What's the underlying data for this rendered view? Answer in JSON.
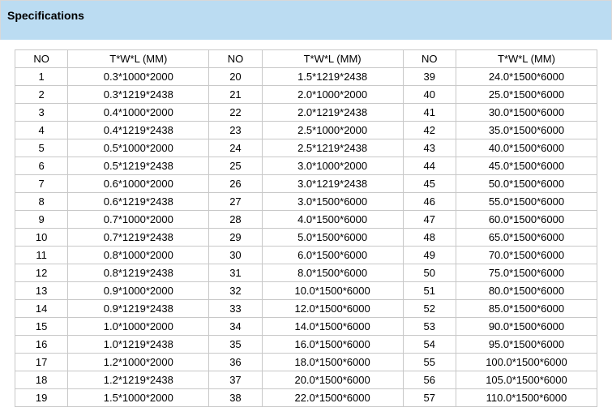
{
  "header": {
    "title": "Specifications"
  },
  "colors": {
    "header_bg": "#bbdcf2",
    "border": "#c8c8c8",
    "text": "#000000",
    "bg": "#ffffff"
  },
  "columns": {
    "no": "NO",
    "twl": "T*W*L (MM)"
  },
  "rows": [
    {
      "c1_no": "1",
      "c1_twl": "0.3*1000*2000",
      "c2_no": "20",
      "c2_twl": "1.5*1219*2438",
      "c3_no": "39",
      "c3_twl": "24.0*1500*6000"
    },
    {
      "c1_no": "2",
      "c1_twl": "0.3*1219*2438",
      "c2_no": "21",
      "c2_twl": "2.0*1000*2000",
      "c3_no": "40",
      "c3_twl": "25.0*1500*6000"
    },
    {
      "c1_no": "3",
      "c1_twl": "0.4*1000*2000",
      "c2_no": "22",
      "c2_twl": "2.0*1219*2438",
      "c3_no": "41",
      "c3_twl": "30.0*1500*6000"
    },
    {
      "c1_no": "4",
      "c1_twl": "0.4*1219*2438",
      "c2_no": "23",
      "c2_twl": "2.5*1000*2000",
      "c3_no": "42",
      "c3_twl": "35.0*1500*6000"
    },
    {
      "c1_no": "5",
      "c1_twl": "0.5*1000*2000",
      "c2_no": "24",
      "c2_twl": "2.5*1219*2438",
      "c3_no": "43",
      "c3_twl": "40.0*1500*6000"
    },
    {
      "c1_no": "6",
      "c1_twl": "0.5*1219*2438",
      "c2_no": "25",
      "c2_twl": "3.0*1000*2000",
      "c3_no": "44",
      "c3_twl": "45.0*1500*6000"
    },
    {
      "c1_no": "7",
      "c1_twl": "0.6*1000*2000",
      "c2_no": "26",
      "c2_twl": "3.0*1219*2438",
      "c3_no": "45",
      "c3_twl": "50.0*1500*6000"
    },
    {
      "c1_no": "8",
      "c1_twl": "0.6*1219*2438",
      "c2_no": "27",
      "c2_twl": "3.0*1500*6000",
      "c3_no": "46",
      "c3_twl": "55.0*1500*6000"
    },
    {
      "c1_no": "9",
      "c1_twl": "0.7*1000*2000",
      "c2_no": "28",
      "c2_twl": "4.0*1500*6000",
      "c3_no": "47",
      "c3_twl": "60.0*1500*6000"
    },
    {
      "c1_no": "10",
      "c1_twl": "0.7*1219*2438",
      "c2_no": "29",
      "c2_twl": "5.0*1500*6000",
      "c3_no": "48",
      "c3_twl": "65.0*1500*6000"
    },
    {
      "c1_no": "11",
      "c1_twl": "0.8*1000*2000",
      "c2_no": "30",
      "c2_twl": "6.0*1500*6000",
      "c3_no": "49",
      "c3_twl": "70.0*1500*6000"
    },
    {
      "c1_no": "12",
      "c1_twl": "0.8*1219*2438",
      "c2_no": "31",
      "c2_twl": "8.0*1500*6000",
      "c3_no": "50",
      "c3_twl": "75.0*1500*6000"
    },
    {
      "c1_no": "13",
      "c1_twl": "0.9*1000*2000",
      "c2_no": "32",
      "c2_twl": "10.0*1500*6000",
      "c3_no": "51",
      "c3_twl": "80.0*1500*6000"
    },
    {
      "c1_no": "14",
      "c1_twl": "0.9*1219*2438",
      "c2_no": "33",
      "c2_twl": "12.0*1500*6000",
      "c3_no": "52",
      "c3_twl": "85.0*1500*6000"
    },
    {
      "c1_no": "15",
      "c1_twl": "1.0*1000*2000",
      "c2_no": "34",
      "c2_twl": "14.0*1500*6000",
      "c3_no": "53",
      "c3_twl": "90.0*1500*6000"
    },
    {
      "c1_no": "16",
      "c1_twl": "1.0*1219*2438",
      "c2_no": "35",
      "c2_twl": "16.0*1500*6000",
      "c3_no": "54",
      "c3_twl": "95.0*1500*6000"
    },
    {
      "c1_no": "17",
      "c1_twl": "1.2*1000*2000",
      "c2_no": "36",
      "c2_twl": "18.0*1500*6000",
      "c3_no": "55",
      "c3_twl": "100.0*1500*6000"
    },
    {
      "c1_no": "18",
      "c1_twl": "1.2*1219*2438",
      "c2_no": "37",
      "c2_twl": "20.0*1500*6000",
      "c3_no": "56",
      "c3_twl": "105.0*1500*6000"
    },
    {
      "c1_no": "19",
      "c1_twl": "1.5*1000*2000",
      "c2_no": "38",
      "c2_twl": "22.0*1500*6000",
      "c3_no": "57",
      "c3_twl": "110.0*1500*6000"
    }
  ]
}
